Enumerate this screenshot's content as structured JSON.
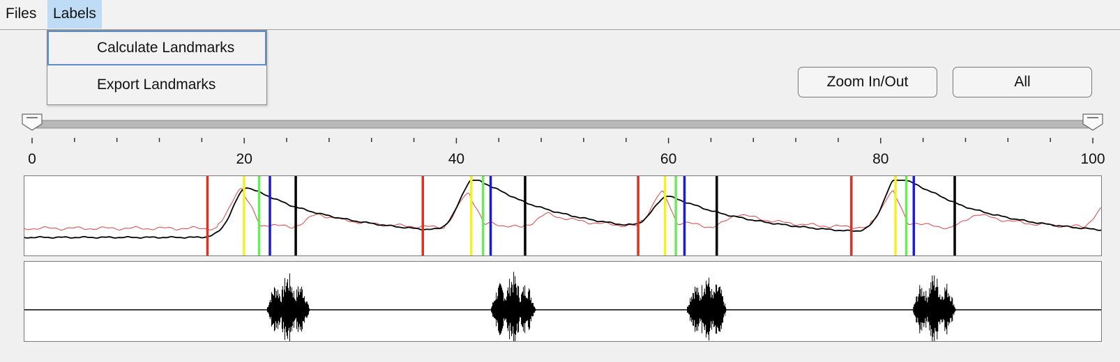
{
  "menubar": {
    "files_label": "Files",
    "labels_label": "Labels"
  },
  "labels_menu": {
    "items": [
      "Calculate Landmarks",
      "Export Landmarks"
    ],
    "highlighted": "Calculate Landmarks"
  },
  "buttons": {
    "zoom_label": "Zoom In/Out",
    "all_label": "All"
  },
  "range_slider": {
    "min": 0,
    "max": 100,
    "low": 0,
    "high": 100,
    "tick_labels": [
      "0",
      "20",
      "40",
      "60",
      "80",
      "100"
    ],
    "major_ticks": [
      0,
      20,
      40,
      60,
      80,
      100
    ],
    "minor_ticks": [
      4,
      8,
      12,
      16,
      24,
      28,
      32,
      36,
      44,
      48,
      52,
      56,
      64,
      68,
      72,
      76,
      84,
      88,
      92,
      96
    ]
  },
  "landmark_plot": {
    "colors": {
      "red": "#e03020",
      "yellow": "#f2f229",
      "green": "#66ee55",
      "blue": "#1a1ad8",
      "black": "#000000",
      "red_trace": "#e04040",
      "black_trace": "#000000"
    },
    "events": [
      {
        "red": 17,
        "yellow": 20.4,
        "green": 21.8,
        "blue": 22.8,
        "black": 25.2
      },
      {
        "red": 37,
        "yellow": 41.5,
        "green": 42.6,
        "blue": 43.3,
        "black": 46.5
      },
      {
        "red": 57,
        "yellow": 59.5,
        "green": 60.5,
        "blue": 61.3,
        "black": 64.3
      },
      {
        "red": 76.8,
        "yellow": 80.9,
        "green": 81.9,
        "blue": 82.6,
        "black": 86.4
      }
    ]
  },
  "waveform_plot": {
    "color": "#000000",
    "bursts": [
      {
        "start": 22.5,
        "end": 26.5
      },
      {
        "start": 43.3,
        "end": 47.5
      },
      {
        "start": 61.5,
        "end": 65.2
      },
      {
        "start": 82.5,
        "end": 86.5
      }
    ]
  }
}
